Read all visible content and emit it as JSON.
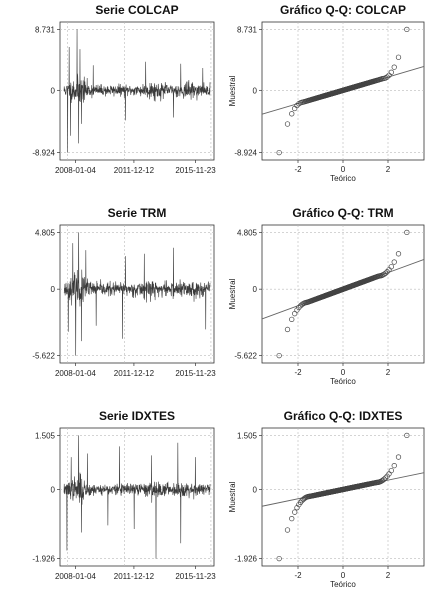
{
  "chart_data": [
    {
      "type": "line",
      "title": "Serie COLCAP",
      "xlabel": "",
      "ylabel": "",
      "yticks": [
        8.731,
        0,
        -8.924
      ],
      "ytick_labels": [
        "8.731",
        "0",
        "-8.924"
      ],
      "ylim": [
        -8.924,
        8.731
      ],
      "xticks": [
        "2008-01-04",
        "2011-12-12",
        "2015-11-23"
      ],
      "grid": true,
      "n_points": 650,
      "seed": 11,
      "noise_scale": 1.6,
      "spikes": [
        {
          "t": 0.025,
          "v": -8.924
        },
        {
          "t": 0.035,
          "v": 6.2
        },
        {
          "t": 0.045,
          "v": -6.5
        },
        {
          "t": 0.09,
          "v": 8.731
        },
        {
          "t": 0.1,
          "v": -7.6
        },
        {
          "t": 0.11,
          "v": 5.9
        },
        {
          "t": 0.12,
          "v": -4.8
        },
        {
          "t": 0.2,
          "v": 3.6
        },
        {
          "t": 0.42,
          "v": -4.3
        },
        {
          "t": 0.56,
          "v": 4.1
        },
        {
          "t": 0.75,
          "v": -3.9
        },
        {
          "t": 0.8,
          "v": 3.8
        },
        {
          "t": 0.95,
          "v": 3.2
        }
      ]
    },
    {
      "type": "scatter",
      "title": "Gráfico Q-Q: COLCAP",
      "xlabel": "Teórico",
      "ylabel": "Muestral",
      "yticks": [
        8.731,
        0,
        -8.924
      ],
      "ytick_labels": [
        "8.731",
        "0",
        "-8.924"
      ],
      "ylim": [
        -8.924,
        8.731
      ],
      "xticks": [
        -2,
        0,
        2
      ],
      "xlim": [
        -3.6,
        3.6
      ],
      "grid": true,
      "reference_line": {
        "slope": 0.95,
        "intercept": 0
      },
      "tail_shape": {
        "left_knee": -1.8,
        "right_knee": 1.8,
        "left_end": -8.924,
        "right_end": 8.731,
        "core_slope": 0.95
      }
    },
    {
      "type": "line",
      "title": "Serie TRM",
      "xlabel": "",
      "ylabel": "",
      "yticks": [
        4.805,
        0,
        -5.622
      ],
      "ytick_labels": [
        "4.805",
        "0",
        "-5.622"
      ],
      "ylim": [
        -5.622,
        4.805
      ],
      "xticks": [
        "2008-01-04",
        "2011-12-12",
        "2015-11-23"
      ],
      "grid": true,
      "n_points": 650,
      "seed": 23,
      "noise_scale": 1.1,
      "spikes": [
        {
          "t": 0.03,
          "v": -3.6
        },
        {
          "t": 0.06,
          "v": 3.9
        },
        {
          "t": 0.08,
          "v": -5.622
        },
        {
          "t": 0.1,
          "v": 4.805
        },
        {
          "t": 0.12,
          "v": -4.4
        },
        {
          "t": 0.15,
          "v": 3.3
        },
        {
          "t": 0.22,
          "v": -3.1
        },
        {
          "t": 0.4,
          "v": -4.2
        },
        {
          "t": 0.42,
          "v": 2.8
        },
        {
          "t": 0.55,
          "v": 3.0
        },
        {
          "t": 0.75,
          "v": 3.5
        },
        {
          "t": 0.97,
          "v": -3.4
        }
      ]
    },
    {
      "type": "scatter",
      "title": "Gráfico Q-Q: TRM",
      "xlabel": "Teórico",
      "ylabel": "Muestral",
      "yticks": [
        4.805,
        0,
        -5.622
      ],
      "ytick_labels": [
        "4.805",
        "0",
        "-5.622"
      ],
      "ylim": [
        -5.622,
        4.805
      ],
      "xticks": [
        -2,
        0,
        2
      ],
      "xlim": [
        -3.6,
        3.6
      ],
      "grid": true,
      "reference_line": {
        "slope": 0.7,
        "intercept": 0
      },
      "tail_shape": {
        "left_knee": -1.6,
        "right_knee": 1.6,
        "left_end": -5.622,
        "right_end": 4.805,
        "core_slope": 0.7
      }
    },
    {
      "type": "line",
      "title": "Serie IDXTES",
      "xlabel": "",
      "ylabel": "",
      "yticks": [
        1.505,
        0,
        -1.926
      ],
      "ytick_labels": [
        "1.505",
        "0",
        "-1.926"
      ],
      "ylim": [
        -1.926,
        1.505
      ],
      "xticks": [
        "2008-01-04",
        "2011-12-12",
        "2015-11-23"
      ],
      "grid": true,
      "n_points": 650,
      "seed": 37,
      "noise_scale": 0.3,
      "spikes": [
        {
          "t": 0.02,
          "v": -1.7
        },
        {
          "t": 0.05,
          "v": 0.9
        },
        {
          "t": 0.1,
          "v": 1.505
        },
        {
          "t": 0.12,
          "v": -1.2
        },
        {
          "t": 0.16,
          "v": 1.0
        },
        {
          "t": 0.3,
          "v": -1.0
        },
        {
          "t": 0.38,
          "v": 1.2
        },
        {
          "t": 0.48,
          "v": -1.1
        },
        {
          "t": 0.6,
          "v": 0.95
        },
        {
          "t": 0.63,
          "v": -1.926
        },
        {
          "t": 0.78,
          "v": 1.3
        },
        {
          "t": 0.8,
          "v": -1.5
        },
        {
          "t": 0.9,
          "v": 0.9
        }
      ]
    },
    {
      "type": "scatter",
      "title": "Gráfico Q-Q: IDXTES",
      "xlabel": "Teórico",
      "ylabel": "Muestral",
      "yticks": [
        1.505,
        0,
        -1.926
      ],
      "ytick_labels": [
        "1.505",
        "0",
        "-1.926"
      ],
      "ylim": [
        -1.926,
        1.505
      ],
      "xticks": [
        -2,
        0,
        2
      ],
      "xlim": [
        -3.6,
        3.6
      ],
      "grid": true,
      "reference_line": {
        "slope": 0.13,
        "intercept": 0
      },
      "tail_shape": {
        "left_knee": -1.5,
        "right_knee": 1.5,
        "left_end": -1.926,
        "right_end": 1.505,
        "core_slope": 0.13
      }
    }
  ]
}
